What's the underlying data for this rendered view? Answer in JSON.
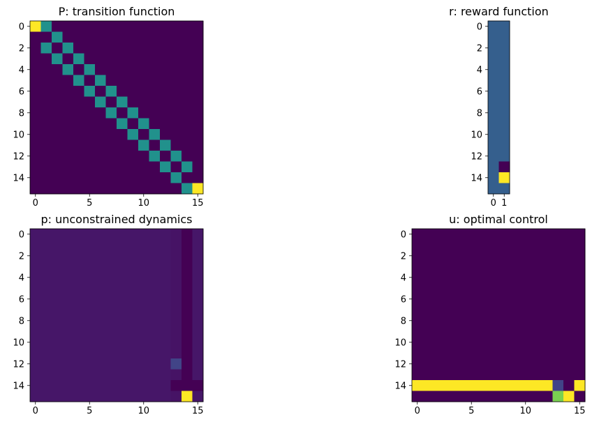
{
  "chart_data": [
    {
      "id": "P",
      "type": "heatmap",
      "title": "P: transition function",
      "rows": 16,
      "cols": 16,
      "xticks": [
        0,
        5,
        10,
        15
      ],
      "yticks": [
        0,
        2,
        4,
        6,
        8,
        10,
        12,
        14
      ],
      "vmin": 0,
      "vmax": 1,
      "default_value": 0,
      "cells": [
        [
          0,
          0,
          1.0
        ],
        [
          0,
          1,
          0.5
        ],
        [
          1,
          2,
          0.5
        ],
        [
          2,
          1,
          0.5
        ],
        [
          2,
          3,
          0.5
        ],
        [
          3,
          2,
          0.5
        ],
        [
          3,
          4,
          0.5
        ],
        [
          4,
          3,
          0.5
        ],
        [
          4,
          5,
          0.5
        ],
        [
          5,
          4,
          0.5
        ],
        [
          5,
          6,
          0.5
        ],
        [
          6,
          5,
          0.5
        ],
        [
          6,
          7,
          0.5
        ],
        [
          7,
          6,
          0.5
        ],
        [
          7,
          8,
          0.5
        ],
        [
          8,
          7,
          0.5
        ],
        [
          8,
          9,
          0.5
        ],
        [
          9,
          8,
          0.5
        ],
        [
          9,
          10,
          0.5
        ],
        [
          10,
          9,
          0.5
        ],
        [
          10,
          11,
          0.5
        ],
        [
          11,
          10,
          0.5
        ],
        [
          11,
          12,
          0.5
        ],
        [
          12,
          11,
          0.5
        ],
        [
          12,
          13,
          0.5
        ],
        [
          13,
          12,
          0.5
        ],
        [
          13,
          14,
          0.5
        ],
        [
          14,
          13,
          0.5
        ],
        [
          15,
          14,
          0.5
        ],
        [
          15,
          15,
          1.0
        ]
      ]
    },
    {
      "id": "r",
      "type": "heatmap",
      "title": "r: reward function",
      "rows": 16,
      "cols": 2,
      "xticks": [
        0,
        1
      ],
      "yticks": [
        0,
        2,
        4,
        6,
        8,
        10,
        12,
        14
      ],
      "vmin": 0,
      "vmax": 1,
      "default_value": 0.3,
      "cells": [
        [
          13,
          1,
          0.0
        ],
        [
          14,
          1,
          1.0
        ]
      ]
    },
    {
      "id": "p",
      "type": "heatmap",
      "title": "p: unconstrained dynamics",
      "rows": 16,
      "cols": 16,
      "xticks": [
        0,
        5,
        10,
        15
      ],
      "yticks": [
        0,
        2,
        4,
        6,
        8,
        10,
        12,
        14
      ],
      "vmin": 0,
      "vmax": 1,
      "default_value": 0.06,
      "column_values": [
        [
          13,
          0.05
        ],
        [
          14,
          0.0
        ],
        [
          15,
          0.06
        ]
      ],
      "cells": [
        [
          12,
          13,
          0.2
        ],
        [
          14,
          13,
          0.0
        ],
        [
          14,
          15,
          0.0
        ],
        [
          15,
          14,
          1.0
        ]
      ]
    },
    {
      "id": "u",
      "type": "heatmap",
      "title": "u: optimal control",
      "rows": 16,
      "cols": 16,
      "xticks": [
        0,
        5,
        10,
        15
      ],
      "yticks": [
        0,
        2,
        4,
        6,
        8,
        10,
        12,
        14
      ],
      "vmin": 0,
      "vmax": 1,
      "default_value": 0,
      "row_values": [
        [
          14,
          1.0
        ]
      ],
      "cells": [
        [
          14,
          13,
          0.2
        ],
        [
          14,
          14,
          0.0
        ],
        [
          15,
          13,
          0.8
        ],
        [
          15,
          14,
          1.0
        ]
      ]
    }
  ]
}
